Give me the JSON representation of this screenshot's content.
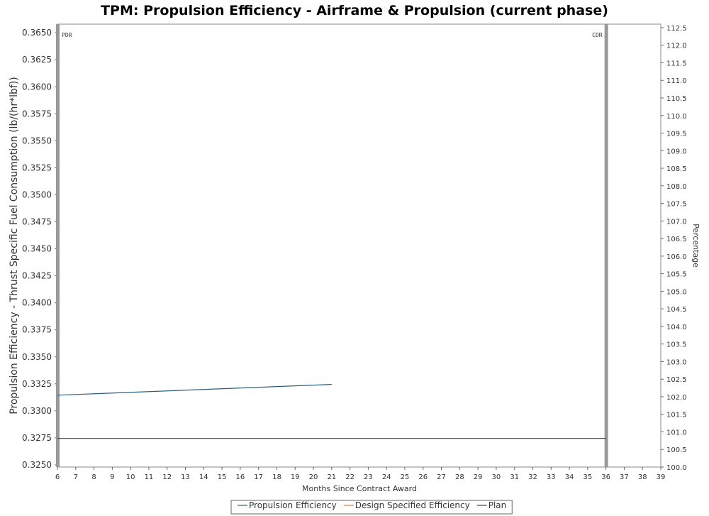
{
  "chart_data": {
    "type": "line",
    "title": "TPM: Propulsion Efficiency - Airframe & Propulsion (current phase)",
    "xlabel": "Months Since Contract Award",
    "ylabel": "Propulsion Efficiency - Thrust Specific Fuel Consumption (lb/(hr*lbf))",
    "ylabel_right": "Percentage",
    "xlim": [
      6,
      39
    ],
    "ylim": [
      0.3248,
      0.3658
    ],
    "ylim_right": [
      100.0,
      112.6
    ],
    "x_ticks": [
      6,
      7,
      8,
      9,
      10,
      11,
      12,
      13,
      14,
      15,
      16,
      17,
      18,
      19,
      20,
      21,
      22,
      23,
      24,
      25,
      26,
      27,
      28,
      29,
      30,
      31,
      32,
      33,
      34,
      35,
      36,
      37,
      38,
      39
    ],
    "y_ticks": [
      "0.3250",
      "0.3275",
      "0.3300",
      "0.3325",
      "0.3350",
      "0.3375",
      "0.3400",
      "0.3425",
      "0.3450",
      "0.3475",
      "0.3500",
      "0.3525",
      "0.3550",
      "0.3575",
      "0.3600",
      "0.3625",
      "0.3650"
    ],
    "y_ticks_right": [
      "100.0",
      "100.5",
      "101.0",
      "101.5",
      "102.0",
      "102.5",
      "103.0",
      "103.5",
      "104.0",
      "104.5",
      "105.0",
      "105.5",
      "106.0",
      "106.5",
      "107.0",
      "107.5",
      "108.0",
      "108.5",
      "109.0",
      "109.5",
      "110.0",
      "110.5",
      "111.0",
      "111.5",
      "112.0",
      "112.5"
    ],
    "series": [
      {
        "name": "Propulsion Efficiency",
        "color": "#2e5f7a",
        "x": [
          6,
          21
        ],
        "y": [
          0.33145,
          0.33245
        ]
      },
      {
        "name": "Design Specified Efficiency",
        "color": "#c8803a",
        "x": [],
        "y": []
      },
      {
        "name": "Plan",
        "color": "#4a3550",
        "x": [
          6,
          36
        ],
        "y": [
          0.32745,
          0.32745
        ]
      }
    ],
    "markers": [
      {
        "label": "PDR",
        "x": 6
      },
      {
        "label": "CDR",
        "x": 36
      }
    ],
    "grid": false,
    "legend_position": "bottom"
  }
}
